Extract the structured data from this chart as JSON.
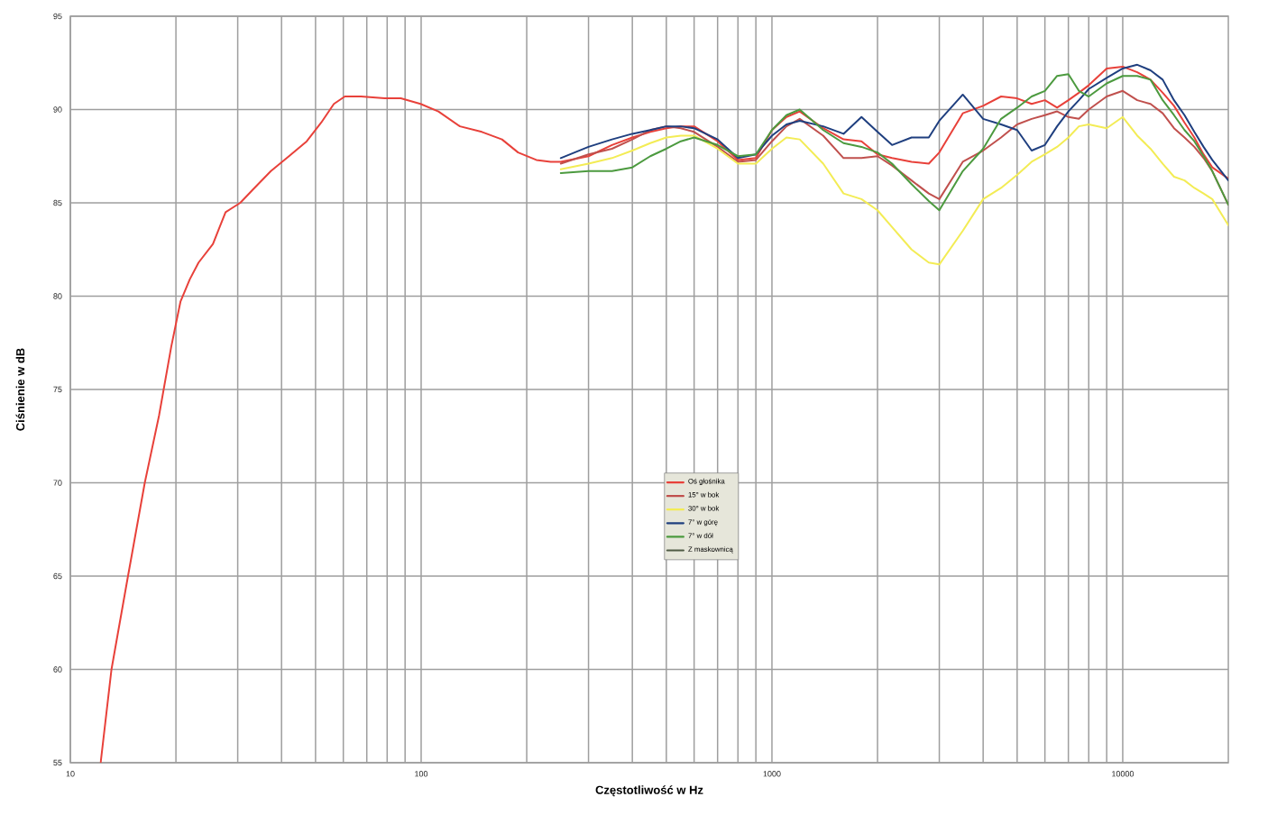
{
  "chart_data": {
    "type": "line",
    "xlabel": "Częstotliwość w Hz",
    "ylabel": "Ciśnienie w dB",
    "log": "x",
    "grid": true,
    "legend": "center",
    "xlim": [
      10,
      20000
    ],
    "ylim": [
      55,
      95
    ],
    "xticks": [
      10,
      {
        "value": 20,
        "label": null
      },
      {
        "value": 30,
        "label": null
      },
      {
        "value": 40,
        "label": null
      },
      {
        "value": 50,
        "label": null
      },
      {
        "value": 60,
        "label": null
      },
      {
        "value": 70,
        "label": null
      },
      {
        "value": 80,
        "label": null
      },
      {
        "value": 90,
        "label": null
      },
      100,
      {
        "value": 200,
        "label": null
      },
      {
        "value": 300,
        "label": null
      },
      {
        "value": 400,
        "label": null
      },
      {
        "value": 500,
        "label": null
      },
      {
        "value": 600,
        "label": null
      },
      {
        "value": 700,
        "label": null
      },
      {
        "value": 800,
        "label": null
      },
      {
        "value": 900,
        "label": null
      },
      1000,
      {
        "value": 2000,
        "label": null
      },
      {
        "value": 3000,
        "label": null
      },
      {
        "value": 4000,
        "label": null
      },
      {
        "value": 5000,
        "label": null
      },
      {
        "value": 6000,
        "label": null
      },
      {
        "value": 7000,
        "label": null
      },
      {
        "value": 8000,
        "label": null
      },
      {
        "value": 9000,
        "label": null
      },
      10000
    ],
    "yticks": [
      55,
      60,
      65,
      70,
      75,
      80,
      85,
      90,
      95
    ],
    "series": [
      {
        "name": "Oś głośnika",
        "color": "#e8413a",
        "x": [
          12.2,
          13.1,
          14.6,
          16.3,
          17.9,
          19.4,
          20.6,
          21.9,
          23.2,
          25.5,
          27.7,
          30.5,
          33.1,
          37.3,
          42,
          47.2,
          51.9,
          56.4,
          60.6,
          67.4,
          78.7,
          87.5,
          99.6,
          112,
          129,
          149,
          170,
          189,
          213,
          234,
          250,
          300,
          350,
          400,
          450,
          500,
          550,
          600,
          700,
          800,
          900,
          1000,
          1100,
          1200,
          1400,
          1600,
          1800,
          2000,
          2200,
          2500,
          2800,
          3000,
          3500,
          4000,
          4500,
          5000,
          5500,
          6000,
          6500,
          7000,
          7500,
          8000,
          9000,
          10000,
          11000,
          12000,
          13000,
          14000,
          15000,
          16000,
          17000,
          18000,
          20000
        ],
        "values": [
          55,
          60,
          65,
          70,
          73.6,
          77.3,
          79.7,
          80.9,
          81.8,
          82.8,
          84.5,
          85.0,
          85.7,
          86.7,
          87.5,
          88.3,
          89.3,
          90.3,
          90.7,
          90.7,
          90.6,
          90.6,
          90.3,
          89.9,
          89.1,
          88.8,
          88.4,
          87.7,
          87.3,
          87.2,
          87.2,
          87.5,
          88.1,
          88.5,
          88.8,
          89.0,
          89.1,
          89.1,
          88.3,
          87.3,
          87.4,
          88.9,
          89.6,
          89.9,
          89.0,
          88.4,
          88.3,
          87.6,
          87.4,
          87.2,
          87.1,
          87.7,
          89.8,
          90.2,
          90.7,
          90.6,
          90.3,
          90.5,
          90.1,
          90.5,
          90.9,
          91.3,
          92.2,
          92.3,
          92.0,
          91.6,
          90.9,
          90.2,
          89.3,
          88.5,
          87.6,
          86.9,
          86.3
        ]
      },
      {
        "name": "15° w bok",
        "color": "#c0504d",
        "x": [
          250,
          300,
          350,
          400,
          450,
          500,
          550,
          600,
          700,
          800,
          900,
          1000,
          1100,
          1200,
          1400,
          1600,
          1800,
          2000,
          2200,
          2500,
          2800,
          3000,
          3500,
          4000,
          4500,
          5000,
          5500,
          6000,
          6500,
          7000,
          7500,
          8000,
          9000,
          10000,
          11000,
          12000,
          13000,
          14000,
          15000,
          16000,
          17000,
          18000,
          20000
        ],
        "values": [
          87.1,
          87.6,
          87.9,
          88.4,
          88.9,
          89.1,
          89.0,
          88.8,
          88.0,
          87.2,
          87.3,
          88.3,
          89.1,
          89.5,
          88.6,
          87.4,
          87.4,
          87.5,
          87.0,
          86.2,
          85.5,
          85.2,
          87.2,
          87.8,
          88.5,
          89.2,
          89.5,
          89.7,
          89.9,
          89.6,
          89.5,
          90.0,
          90.7,
          91.0,
          90.5,
          90.3,
          89.8,
          89.0,
          88.5,
          88.0,
          87.4,
          86.7,
          84.9
        ]
      },
      {
        "name": "30° w bok",
        "color": "#f3ec55",
        "x": [
          250,
          300,
          350,
          400,
          450,
          500,
          550,
          600,
          700,
          800,
          900,
          1000,
          1100,
          1200,
          1400,
          1600,
          1800,
          2000,
          2200,
          2500,
          2800,
          3000,
          3500,
          4000,
          4500,
          5000,
          5500,
          6000,
          6500,
          7000,
          7500,
          8000,
          9000,
          10000,
          11000,
          12000,
          13000,
          14000,
          15000,
          16000,
          17000,
          18000,
          20000
        ],
        "values": [
          86.8,
          87.1,
          87.4,
          87.8,
          88.2,
          88.5,
          88.6,
          88.6,
          87.9,
          87.1,
          87.1,
          87.9,
          88.5,
          88.4,
          87.1,
          85.5,
          85.2,
          84.6,
          83.7,
          82.5,
          81.8,
          81.7,
          83.5,
          85.2,
          85.8,
          86.5,
          87.2,
          87.6,
          88.0,
          88.5,
          89.1,
          89.2,
          89.0,
          89.6,
          88.6,
          87.9,
          87.1,
          86.4,
          86.2,
          85.8,
          85.5,
          85.2,
          83.8
        ]
      },
      {
        "name": "7° w górę",
        "color": "#1f3f7f",
        "x": [
          250,
          300,
          350,
          400,
          450,
          500,
          550,
          600,
          700,
          800,
          900,
          1000,
          1100,
          1200,
          1400,
          1600,
          1800,
          2000,
          2200,
          2500,
          2800,
          3000,
          3500,
          4000,
          4500,
          5000,
          5500,
          6000,
          6500,
          7000,
          7500,
          8000,
          9000,
          10000,
          11000,
          12000,
          13000,
          14000,
          15000,
          16000,
          17000,
          18000,
          20000
        ],
        "values": [
          87.4,
          88.0,
          88.4,
          88.7,
          88.9,
          89.1,
          89.1,
          89.0,
          88.4,
          87.4,
          87.6,
          88.6,
          89.2,
          89.4,
          89.1,
          88.7,
          89.6,
          88.8,
          88.1,
          88.5,
          88.5,
          89.4,
          90.8,
          89.5,
          89.2,
          88.9,
          87.8,
          88.1,
          89.1,
          89.9,
          90.5,
          91.1,
          91.7,
          92.2,
          92.4,
          92.1,
          91.6,
          90.5,
          89.7,
          88.8,
          88.0,
          87.3,
          86.2
        ]
      },
      {
        "name": "7° w dół",
        "color": "#4c9a3f",
        "x": [
          250,
          300,
          350,
          400,
          450,
          500,
          550,
          600,
          700,
          800,
          900,
          1000,
          1100,
          1200,
          1400,
          1600,
          1800,
          2000,
          2200,
          2500,
          2800,
          3000,
          3500,
          4000,
          4500,
          5000,
          5500,
          6000,
          6500,
          7000,
          7500,
          8000,
          9000,
          10000,
          11000,
          12000,
          13000,
          14000,
          15000,
          16000,
          17000,
          18000,
          20000
        ],
        "values": [
          86.6,
          86.7,
          86.7,
          86.9,
          87.5,
          87.9,
          88.3,
          88.5,
          88.1,
          87.5,
          87.6,
          88.9,
          89.7,
          90.0,
          88.9,
          88.2,
          88.0,
          87.7,
          87.1,
          86.0,
          85.1,
          84.6,
          86.7,
          87.9,
          89.5,
          90.1,
          90.7,
          91.0,
          91.8,
          91.9,
          91.0,
          90.7,
          91.4,
          91.8,
          91.8,
          91.6,
          90.5,
          89.7,
          88.9,
          88.3,
          87.5,
          86.7,
          84.9
        ]
      },
      {
        "name": "Z maskownicą",
        "color": "#4f5b45"
      }
    ]
  }
}
